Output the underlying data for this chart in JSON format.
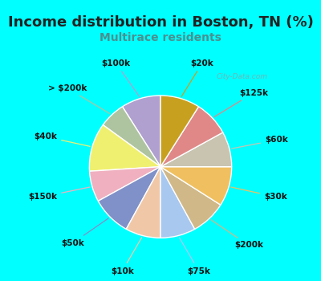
{
  "title": "Income distribution in Boston, TN (%)",
  "subtitle": "Multirace residents",
  "title_color": "#222222",
  "subtitle_color": "#4a9090",
  "bg_cyan": "#00ffff",
  "chart_bg": "#d8f0e0",
  "watermark": "© City-Data.com",
  "labels": [
    "$100k",
    "> $200k",
    "$40k",
    "$150k",
    "$50k",
    "$10k",
    "$75k",
    "$200k",
    "$30k",
    "$60k",
    "$125k",
    "$20k"
  ],
  "values": [
    9,
    6,
    11,
    7,
    9,
    8,
    8,
    8,
    9,
    8,
    8,
    9
  ],
  "colors": [
    "#b0a0d0",
    "#aec4a0",
    "#f0f070",
    "#f0b0c0",
    "#8090c8",
    "#f0c8a8",
    "#a8c8f0",
    "#d0b888",
    "#f0c060",
    "#c8c4b0",
    "#e08888",
    "#c8a020"
  ],
  "label_fontsize": 7.5,
  "title_fontsize": 13,
  "subtitle_fontsize": 10,
  "startangle": 90
}
